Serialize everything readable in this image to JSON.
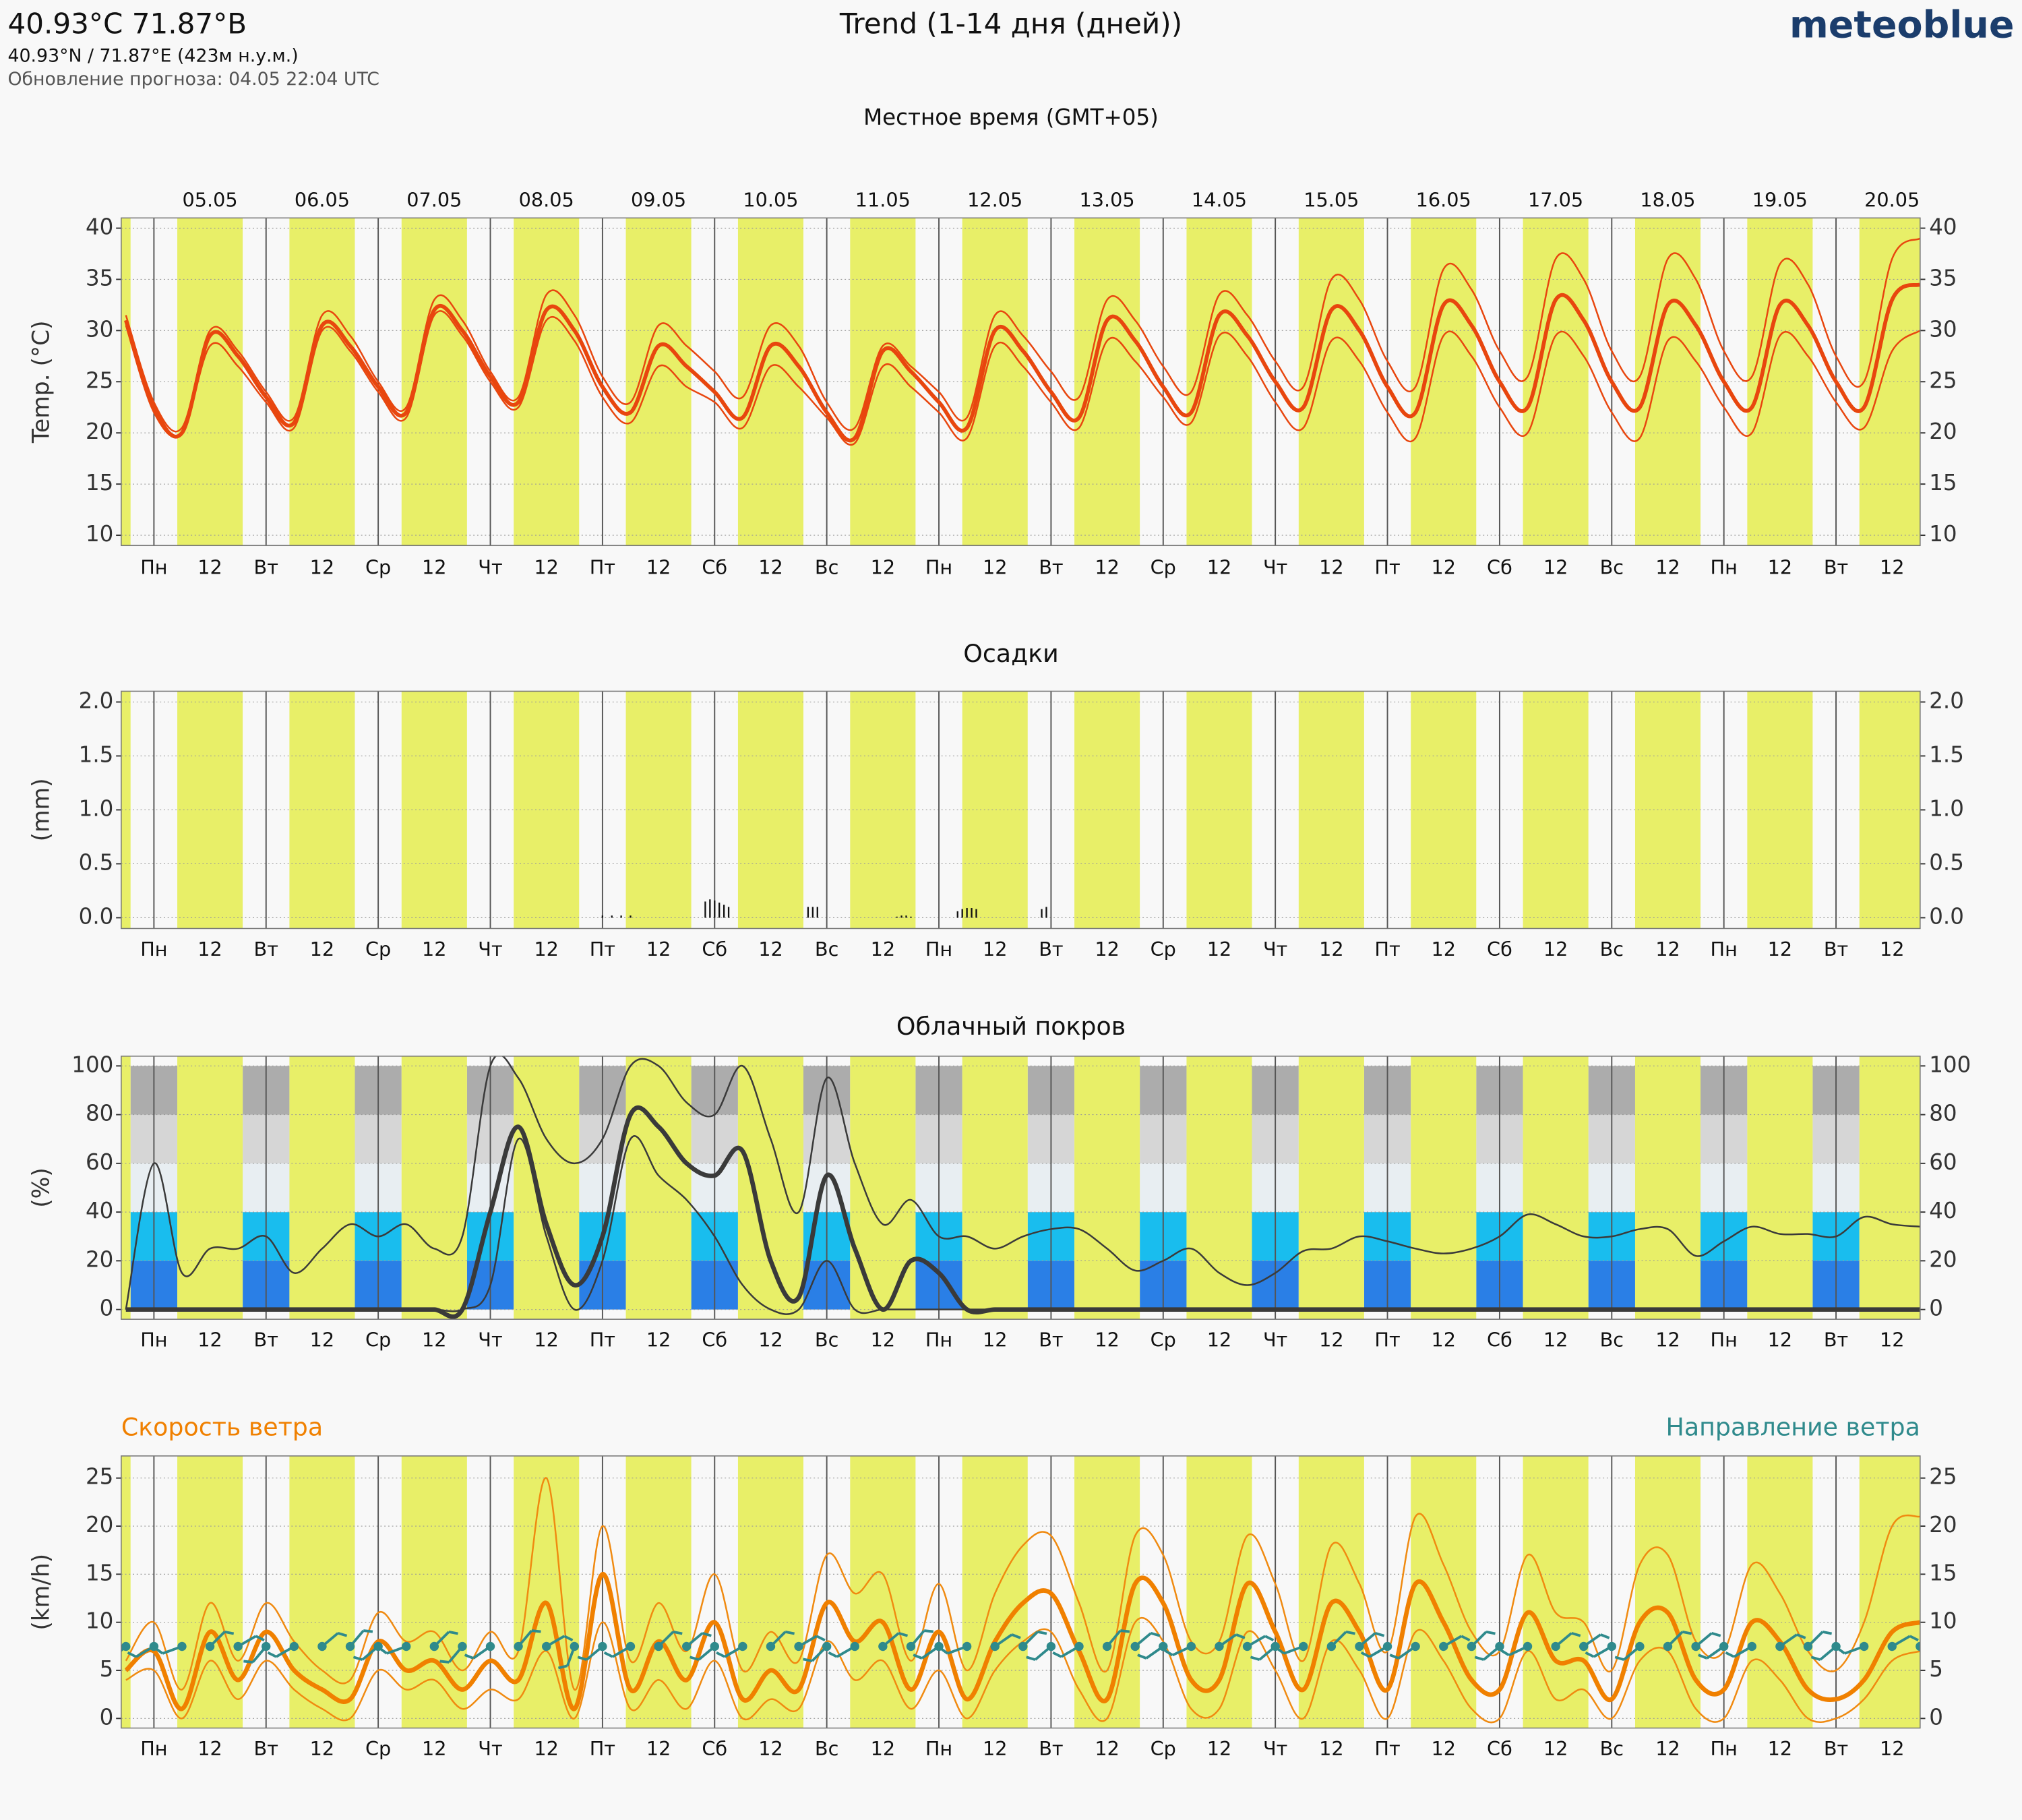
{
  "header": {
    "title": "40.93°C 71.87°В",
    "coords": "40.93°N / 71.87°E (423м н.у.м.)",
    "updated": "Обновление прогноза: 04.05 22:04 UTC",
    "chart_title": "Trend (1-14 дня (дней))",
    "logo": "meteoblue"
  },
  "time_axis": {
    "label": "Местное время (GMT+05)",
    "xlim": [
      -7,
      378
    ],
    "x": [
      -6,
      0,
      6,
      12,
      18,
      24,
      30,
      36,
      42,
      48,
      54,
      60,
      66,
      72,
      78,
      84,
      90,
      96,
      102,
      108,
      114,
      120,
      126,
      132,
      138,
      144,
      150,
      156,
      162,
      168,
      174,
      180,
      186,
      192,
      198,
      204,
      210,
      216,
      222,
      228,
      234,
      240,
      246,
      252,
      258,
      264,
      270,
      276,
      282,
      288,
      294,
      300,
      306,
      312,
      318,
      324,
      330,
      336,
      342,
      348,
      354,
      360,
      366,
      372,
      378
    ],
    "xticks": [
      {
        "value": 0,
        "label": "Пн"
      },
      {
        "value": 12,
        "label": "12"
      },
      {
        "value": 24,
        "label": "Вт"
      },
      {
        "value": 36,
        "label": "12"
      },
      {
        "value": 48,
        "label": "Ср"
      },
      {
        "value": 60,
        "label": "12"
      },
      {
        "value": 72,
        "label": "Чт"
      },
      {
        "value": 84,
        "label": "12"
      },
      {
        "value": 96,
        "label": "Пт"
      },
      {
        "value": 108,
        "label": "12"
      },
      {
        "value": 120,
        "label": "Сб"
      },
      {
        "value": 132,
        "label": "12"
      },
      {
        "value": 144,
        "label": "Вс"
      },
      {
        "value": 156,
        "label": "12"
      },
      {
        "value": 168,
        "label": "Пн"
      },
      {
        "value": 180,
        "label": "12"
      },
      {
        "value": 192,
        "label": "Вт"
      },
      {
        "value": 204,
        "label": "12"
      },
      {
        "value": 216,
        "label": "Ср"
      },
      {
        "value": 228,
        "label": "12"
      },
      {
        "value": 240,
        "label": "Чт"
      },
      {
        "value": 252,
        "label": "12"
      },
      {
        "value": 264,
        "label": "Пт"
      },
      {
        "value": 276,
        "label": "12"
      },
      {
        "value": 288,
        "label": "Сб"
      },
      {
        "value": 300,
        "label": "12"
      },
      {
        "value": 312,
        "label": "Вс"
      },
      {
        "value": 324,
        "label": "12"
      },
      {
        "value": 336,
        "label": "Пн"
      },
      {
        "value": 348,
        "label": "12"
      },
      {
        "value": 360,
        "label": "Вт"
      },
      {
        "value": 372,
        "label": "12"
      }
    ],
    "date_ticks": [
      {
        "value": 12,
        "label": "05.05"
      },
      {
        "value": 36,
        "label": "06.05"
      },
      {
        "value": 60,
        "label": "07.05"
      },
      {
        "value": 84,
        "label": "08.05"
      },
      {
        "value": 108,
        "label": "09.05"
      },
      {
        "value": 132,
        "label": "10.05"
      },
      {
        "value": 156,
        "label": "11.05"
      },
      {
        "value": 180,
        "label": "12.05"
      },
      {
        "value": 204,
        "label": "13.05"
      },
      {
        "value": 228,
        "label": "14.05"
      },
      {
        "value": 252,
        "label": "15.05"
      },
      {
        "value": 276,
        "label": "16.05"
      },
      {
        "value": 300,
        "label": "17.05"
      },
      {
        "value": 324,
        "label": "18.05"
      },
      {
        "value": 348,
        "label": "19.05"
      },
      {
        "value": 372,
        "label": "20.05"
      }
    ],
    "daylight": {
      "start": 5,
      "end": 19,
      "color": "#e8ef68"
    }
  },
  "chart_data": [
    {
      "type": "line",
      "ylabel": "Temp. (°C)",
      "ylim": [
        9,
        41
      ],
      "yticks": [
        10,
        15,
        20,
        25,
        30,
        35,
        40
      ],
      "grid": true,
      "series": [
        {
          "color": "#e8460e",
          "line_width": 1.3,
          "values": [
            30.5,
            22,
            20,
            28.5,
            26.5,
            23,
            20.5,
            30,
            28,
            24,
            21.5,
            31.5,
            29.5,
            25,
            22.5,
            31,
            29,
            23.5,
            21,
            26.5,
            24.5,
            23,
            20.5,
            26.5,
            24.5,
            21.5,
            19,
            26.5,
            24.5,
            22,
            19.5,
            28.5,
            26.5,
            23,
            20.5,
            29,
            27,
            23.5,
            21,
            29.5,
            27.5,
            23,
            20.5,
            29,
            27,
            22,
            19.5,
            29.5,
            27.5,
            22.5,
            20,
            29.5,
            27.5,
            22,
            19.5,
            29,
            27,
            22.5,
            20,
            29.5,
            27.5,
            23,
            20.5,
            28,
            30
          ]
        },
        {
          "color": "#e8460e",
          "line_width": 1.3,
          "values": [
            31.5,
            23,
            20.5,
            30,
            28,
            24,
            21.5,
            31.5,
            29.5,
            25,
            22.5,
            33,
            31,
            26,
            23.5,
            33.5,
            31.5,
            25.5,
            23,
            30.5,
            28.5,
            26,
            23.5,
            30.5,
            28.5,
            23,
            20.5,
            28.5,
            26.5,
            24,
            21.5,
            31.5,
            29.5,
            26,
            23.5,
            33,
            31,
            26.5,
            24,
            33.5,
            31.5,
            27,
            24.5,
            35,
            33,
            27,
            24.5,
            36,
            34,
            28,
            25.5,
            37,
            35,
            28,
            25.5,
            37,
            35,
            28,
            25.5,
            36.5,
            34.5,
            27.5,
            25,
            37,
            39
          ]
        },
        {
          "color": "#e8460e",
          "line_width": 3,
          "values": [
            31,
            22.5,
            20,
            29.5,
            27.5,
            23.5,
            21,
            30.5,
            28.5,
            24.5,
            22,
            32,
            30,
            25.5,
            23,
            32,
            30,
            24.5,
            22,
            28.5,
            26.5,
            24,
            21.5,
            28.5,
            26.5,
            22,
            19.5,
            28,
            26,
            23,
            20.5,
            30,
            28,
            24,
            21.5,
            31,
            29,
            24.5,
            22,
            31.5,
            29.5,
            25,
            22.5,
            32,
            30,
            24.5,
            22,
            32.5,
            30.5,
            25,
            22.5,
            33,
            31,
            25,
            22.5,
            32.5,
            30.5,
            25,
            22.5,
            32.5,
            30.5,
            25,
            22.5,
            33,
            34.5
          ]
        }
      ]
    },
    {
      "type": "bar",
      "title": "Осадки",
      "ylabel": "(mm)",
      "ylim": [
        -0.1,
        2.1
      ],
      "color": "#111111",
      "yticks": [
        {
          "value": 0,
          "label": "0.0"
        },
        {
          "value": 0.5,
          "label": "0.5"
        },
        {
          "value": 1,
          "label": "1.0"
        },
        {
          "value": 1.5,
          "label": "1.5"
        },
        {
          "value": 2,
          "label": "2.0"
        }
      ],
      "x": [
        96,
        98,
        100,
        102,
        118,
        119,
        120,
        121,
        122,
        123,
        140,
        141,
        142,
        159,
        160,
        161,
        162,
        172,
        173,
        174,
        175,
        176,
        190,
        191
      ],
      "values": [
        0.02,
        0.02,
        0.02,
        0.02,
        0.15,
        0.17,
        0.16,
        0.14,
        0.12,
        0.1,
        0.1,
        0.1,
        0.1,
        0.01,
        0.02,
        0.02,
        0.01,
        0.06,
        0.08,
        0.09,
        0.09,
        0.08,
        0.08,
        0.1
      ]
    },
    {
      "type": "line",
      "title": "Облачный покров",
      "ylabel": "(%)",
      "ylim": [
        -4,
        104
      ],
      "yticks": [
        0,
        20,
        40,
        60,
        80,
        100
      ],
      "night_layers": true,
      "series": [
        {
          "color": "#3a3a3a",
          "line_width": 1.3,
          "values": [
            0,
            0,
            0,
            0,
            0,
            0,
            0,
            0,
            0,
            0,
            0,
            0,
            0,
            10,
            70,
            30,
            0,
            20,
            70,
            55,
            45,
            30,
            10,
            0,
            0,
            20,
            0,
            0,
            0,
            0,
            0,
            0,
            0,
            0,
            0,
            0,
            0,
            0,
            0,
            0,
            0,
            0,
            0,
            0,
            0,
            0,
            0,
            0,
            0,
            0,
            0,
            0,
            0,
            0,
            0,
            0,
            0,
            0,
            0,
            0,
            0,
            0,
            0,
            0,
            0
          ]
        },
        {
          "color": "#3a3a3a",
          "line_width": 1.3,
          "values": [
            0,
            60,
            15,
            25,
            25,
            30,
            15,
            25,
            35,
            30,
            35,
            25,
            30,
            100,
            95,
            70,
            60,
            70,
            100,
            100,
            85,
            80,
            100,
            70,
            40,
            95,
            60,
            35,
            45,
            30,
            30,
            25,
            30,
            33,
            33,
            25,
            16,
            20,
            25,
            15,
            10,
            15,
            24,
            25,
            30,
            28,
            25,
            23,
            25,
            30,
            39,
            35,
            30,
            30,
            33,
            33,
            22,
            28,
            34,
            31,
            31,
            30,
            38,
            35,
            34
          ]
        },
        {
          "color": "#3a3a3a",
          "line_width": 3.5,
          "values": [
            0,
            0,
            0,
            0,
            0,
            0,
            0,
            0,
            0,
            0,
            0,
            0,
            0,
            40,
            75,
            35,
            10,
            30,
            80,
            75,
            60,
            55,
            65,
            20,
            5,
            55,
            25,
            0,
            20,
            15,
            0,
            0,
            0,
            0,
            0,
            0,
            0,
            0,
            0,
            0,
            0,
            0,
            0,
            0,
            0,
            0,
            0,
            0,
            0,
            0,
            0,
            0,
            0,
            0,
            0,
            0,
            0,
            0,
            0,
            0,
            0,
            0,
            0,
            0,
            0
          ]
        }
      ]
    },
    {
      "type": "line",
      "title": "Скорость ветра",
      "title_color": "#f08000",
      "ylabel": "(km/h)",
      "ylim": [
        -1,
        27.3
      ],
      "yticks": [
        0,
        5,
        10,
        15,
        20,
        25
      ],
      "grid": true,
      "series": [
        {
          "color": "#f08a10",
          "line_width": 1.3,
          "values": [
            4,
            5,
            0,
            6,
            2,
            6,
            3,
            1,
            0,
            5,
            3,
            4,
            1,
            3,
            2,
            7,
            0,
            10,
            1,
            4,
            1,
            6,
            0,
            2,
            1,
            8,
            4,
            6,
            1,
            5,
            0,
            5,
            8,
            9,
            3,
            0,
            10,
            8,
            1,
            1,
            9,
            5,
            0,
            8,
            5,
            0,
            9,
            6,
            1,
            0,
            7,
            2,
            3,
            0,
            6,
            7,
            1,
            0,
            6,
            4,
            0,
            0,
            2,
            6,
            7
          ]
        },
        {
          "color": "#f08a10",
          "line_width": 1.3,
          "values": [
            6,
            10,
            3,
            12,
            6,
            12,
            8,
            5,
            4,
            11,
            8,
            9,
            5,
            9,
            7,
            25,
            3,
            20,
            6,
            12,
            7,
            15,
            5,
            9,
            6,
            17,
            13,
            15,
            6,
            14,
            5,
            13,
            18,
            19,
            12,
            5,
            19,
            17,
            8,
            8,
            19,
            14,
            6,
            18,
            14,
            7,
            21,
            16,
            9,
            7,
            17,
            11,
            10,
            5,
            16,
            17,
            8,
            7,
            16,
            13,
            7,
            5,
            10,
            20,
            21
          ]
        },
        {
          "color": "#f08000",
          "line_width": 3.5,
          "values": [
            5,
            7,
            1,
            9,
            4,
            9,
            5,
            3,
            2,
            8,
            5,
            6,
            3,
            6,
            4,
            12,
            1,
            15,
            3,
            8,
            4,
            10,
            2,
            5,
            3,
            12,
            8,
            10,
            3,
            9,
            2,
            8,
            12,
            13,
            7,
            2,
            14,
            12,
            4,
            4,
            14,
            9,
            3,
            12,
            9,
            3,
            14,
            10,
            4,
            3,
            11,
            6,
            6,
            2,
            10,
            11,
            4,
            3,
            10,
            8,
            3,
            2,
            4,
            9,
            10
          ]
        }
      ],
      "direction": {
        "title": "Направление ветра",
        "color": "#2f8a8c",
        "values": [
          230,
          240,
          250,
          45,
          60,
          220,
          240,
          50,
          40,
          230,
          250,
          45,
          220,
          235,
          40,
          60,
          200,
          230,
          240,
          45,
          50,
          230,
          240,
          45,
          60,
          225,
          240,
          50,
          40,
          235,
          250,
          55,
          45,
          230,
          240,
          40,
          50,
          235,
          245,
          55,
          60,
          230,
          250,
          45,
          50,
          240,
          235,
          60,
          45,
          230,
          245,
          50,
          55,
          240,
          230,
          45,
          50,
          235,
          240,
          55,
          45,
          230,
          250,
          60,
          55
        ]
      }
    }
  ]
}
